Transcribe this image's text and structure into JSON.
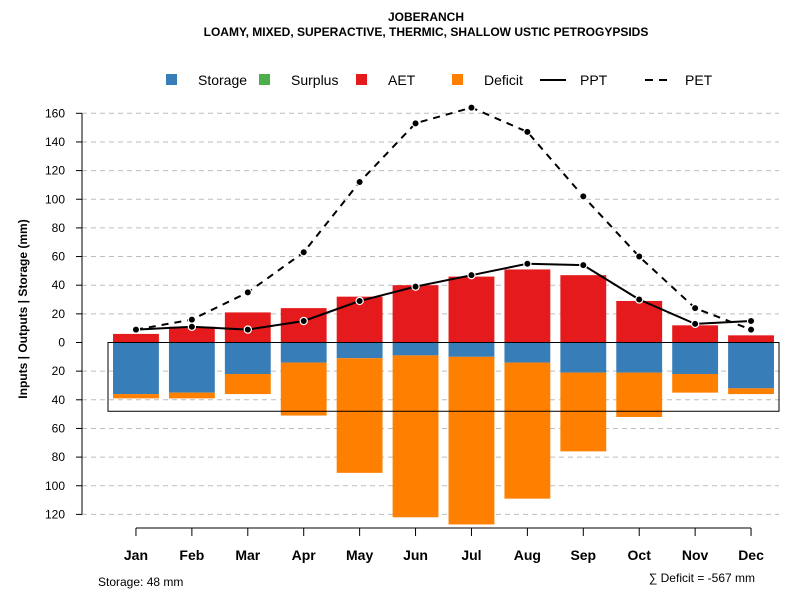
{
  "chart_data": {
    "type": "bar",
    "title": "JOBERANCH",
    "subtitle": "LOAMY, MIXED, SUPERACTIVE, THERMIC, SHALLOW USTIC PETROGYPSIDS",
    "ylabel": "Inputs | Outputs | Storage    (mm)",
    "ylim": [
      -128,
      170
    ],
    "yticks": [
      -120,
      -100,
      -80,
      -60,
      -40,
      -20,
      0,
      20,
      40,
      60,
      80,
      100,
      120,
      140,
      160
    ],
    "categories": [
      "Jan",
      "Feb",
      "Mar",
      "Apr",
      "May",
      "Jun",
      "Jul",
      "Aug",
      "Sep",
      "Oct",
      "Nov",
      "Dec"
    ],
    "legend": [
      {
        "label": "Storage",
        "kind": "box",
        "color": "#377eb8"
      },
      {
        "label": "Surplus",
        "kind": "box",
        "color": "#4daf4a"
      },
      {
        "label": "AET",
        "kind": "box",
        "color": "#e41a1c"
      },
      {
        "label": "Deficit",
        "kind": "box",
        "color": "#ff7f00"
      },
      {
        "label": "PPT",
        "kind": "solid",
        "color": "#000000"
      },
      {
        "label": "PET",
        "kind": "dashed",
        "color": "#000000"
      }
    ],
    "series": [
      {
        "name": "AET",
        "color": "#e41a1c",
        "values": [
          6,
          11,
          21,
          24,
          32,
          40,
          46,
          51,
          47,
          29,
          12,
          5
        ]
      },
      {
        "name": "Storage",
        "color": "#377eb8",
        "values": [
          36,
          35,
          22,
          14,
          11,
          9,
          10,
          14,
          21,
          21,
          22,
          32
        ]
      },
      {
        "name": "Deficit",
        "color": "#ff7f00",
        "values": [
          3,
          4,
          14,
          37,
          80,
          113,
          117,
          95,
          55,
          31,
          13,
          4
        ]
      },
      {
        "name": "PPT",
        "color": "#000000",
        "values": [
          9,
          11,
          9,
          15,
          29,
          39,
          47,
          55,
          54,
          30,
          13,
          15
        ]
      },
      {
        "name": "PET",
        "color": "#000000",
        "values": [
          9,
          16,
          35,
          63,
          112,
          153,
          164,
          147,
          102,
          60,
          24,
          9
        ]
      }
    ],
    "storage_capacity": 48,
    "storage_label": "Storage: 48 mm",
    "deficit_label": "∑ Deficit = -567 mm",
    "grid": true
  }
}
